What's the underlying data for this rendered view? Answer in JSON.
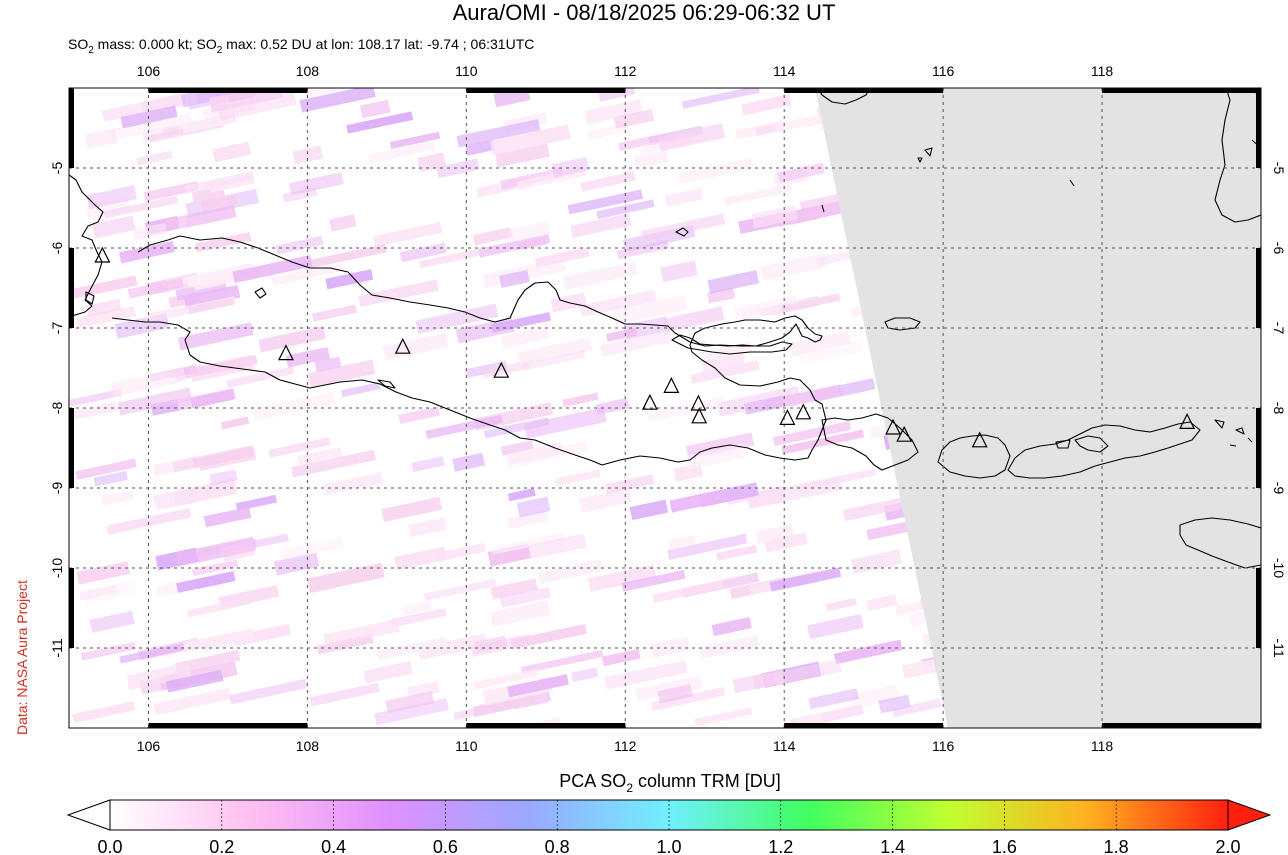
{
  "header": {
    "title": "Aura/OMI - 08/18/2025 06:29-06:32 UT",
    "subtitle_prefix": "SO",
    "subtitle_sub": "2",
    "subtitle_mid": " mass: 0.000 kt; SO",
    "subtitle_sub2": "2",
    "subtitle_rest": " max: 0.52 DU at lon: 108.17 lat: -9.74 ; 06:31UTC"
  },
  "credit": "Data: NASA Aura Project",
  "map": {
    "lon_range": [
      105.0,
      120.0
    ],
    "lat_range": [
      -12.0,
      -4.0
    ],
    "lon_ticks": [
      "106",
      "108",
      "110",
      "112",
      "114",
      "116",
      "118"
    ],
    "lon_tick_values": [
      106,
      108,
      110,
      112,
      114,
      116,
      118
    ],
    "lat_ticks": [
      "-5",
      "-6",
      "-7",
      "-8",
      "-9",
      "-10",
      "-11"
    ],
    "lat_tick_values": [
      -5,
      -6,
      -7,
      -8,
      -9,
      -10,
      -11
    ],
    "no_data_color": "#e3e3e3",
    "volcanoes": [
      {
        "lon": 105.42,
        "lat": -6.1
      },
      {
        "lon": 107.73,
        "lat": -7.32
      },
      {
        "lon": 109.2,
        "lat": -7.24
      },
      {
        "lon": 110.44,
        "lat": -7.54
      },
      {
        "lon": 112.31,
        "lat": -7.94
      },
      {
        "lon": 112.58,
        "lat": -7.73
      },
      {
        "lon": 112.92,
        "lat": -7.95
      },
      {
        "lon": 112.93,
        "lat": -8.11
      },
      {
        "lon": 114.04,
        "lat": -8.13
      },
      {
        "lon": 114.24,
        "lat": -8.06
      },
      {
        "lon": 115.37,
        "lat": -8.25
      },
      {
        "lon": 115.51,
        "lat": -8.34
      },
      {
        "lon": 116.46,
        "lat": -8.41
      },
      {
        "lon": 119.07,
        "lat": -8.18
      }
    ]
  },
  "colorbar": {
    "title_prefix": "PCA SO",
    "title_sub": "2",
    "title_rest": " column TRM [DU]",
    "ticks": [
      "0.0",
      "0.2",
      "0.4",
      "0.6",
      "0.8",
      "1.0",
      "1.2",
      "1.4",
      "1.6",
      "1.8",
      "2.0"
    ],
    "min": 0.0,
    "max": 2.0,
    "colors": [
      "#ffffff",
      "#ffc0f0",
      "#e090ff",
      "#9aa8ff",
      "#70f0ff",
      "#40ff60",
      "#c0ff30",
      "#ffb020",
      "#ff2010"
    ]
  }
}
